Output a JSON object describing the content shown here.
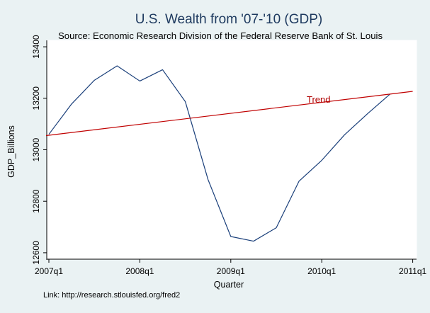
{
  "chart_data": {
    "type": "line",
    "title": "U.S. Wealth from '07-'10 (GDP)",
    "subtitle": "Source: Economic Research Division of the Federal Reserve Bank of St. Louis",
    "xlabel": "Quarter",
    "ylabel": "GDP_Billions",
    "note": "Link: http://research.stlouisfed.org/fred2",
    "x_ticks": [
      "2007q1",
      "2008q1",
      "2009q1",
      "2010q1",
      "2011q1"
    ],
    "y_ticks": [
      12600,
      12800,
      13000,
      13200,
      13400
    ],
    "ylim": [
      12575,
      13425
    ],
    "x": [
      "2007q1",
      "2007q2",
      "2007q3",
      "2007q4",
      "2008q1",
      "2008q2",
      "2008q3",
      "2008q4",
      "2009q1",
      "2009q2",
      "2009q3",
      "2009q4",
      "2010q1",
      "2010q2",
      "2010q3",
      "2010q4"
    ],
    "series": [
      {
        "name": "GDP_Billions",
        "color": "#1a3f7a",
        "values": [
          13060,
          13178,
          13270,
          13326,
          13267,
          13311,
          13187,
          12884,
          12663,
          12645,
          12697,
          12878,
          12959,
          13058,
          13139,
          13216
        ]
      },
      {
        "name": "Trend",
        "label": "Trend",
        "color": "#c00000",
        "values": [
          13055,
          13227
        ],
        "x": [
          "2007q1",
          "2011q1"
        ]
      }
    ],
    "grid": false
  }
}
